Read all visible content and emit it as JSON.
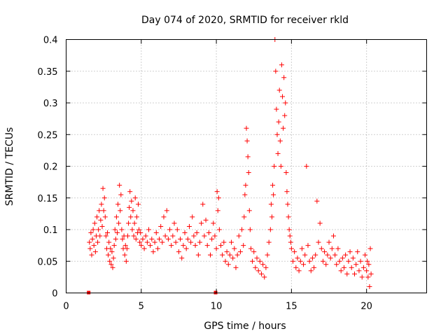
{
  "chart_data": {
    "type": "scatter",
    "title": "Day 074 of 2020, SRMTID for receiver rkld",
    "xlabel": "GPS time / hours",
    "ylabel": "SRMTID / TECUs",
    "xlim": [
      0,
      24
    ],
    "ylim": [
      0,
      0.4
    ],
    "xticks": [
      0,
      5,
      10,
      15,
      20
    ],
    "xtick_labels": [
      "0",
      "5",
      "10",
      "15",
      "20"
    ],
    "yticks": [
      0,
      0.05,
      0.1,
      0.15,
      0.2,
      0.25,
      0.3,
      0.35,
      0.4
    ],
    "ytick_labels": [
      "0",
      "0.05",
      "0.1",
      "0.15",
      "0.2",
      "0.25",
      "0.3",
      "0.35",
      "0.4"
    ],
    "grid": true,
    "marker": "+",
    "marker_color": "#ff0000",
    "zero_markers": [
      {
        "x": 1.5,
        "y": 0
      },
      {
        "x": 9.95,
        "y": 0
      }
    ],
    "series": [
      {
        "name": "SRMTID",
        "points": [
          [
            1.55,
            0.08
          ],
          [
            1.6,
            0.07
          ],
          [
            1.65,
            0.095
          ],
          [
            1.7,
            0.06
          ],
          [
            1.75,
            0.085
          ],
          [
            1.8,
            0.1
          ],
          [
            1.85,
            0.075
          ],
          [
            1.9,
            0.11
          ],
          [
            1.95,
            0.065
          ],
          [
            2.0,
            0.09
          ],
          [
            2.05,
            0.12
          ],
          [
            2.1,
            0.08
          ],
          [
            2.15,
            0.1
          ],
          [
            2.2,
            0.13
          ],
          [
            2.25,
            0.09
          ],
          [
            2.3,
            0.115
          ],
          [
            2.35,
            0.14
          ],
          [
            2.4,
            0.105
          ],
          [
            2.45,
            0.165
          ],
          [
            2.5,
            0.13
          ],
          [
            2.55,
            0.15
          ],
          [
            2.6,
            0.12
          ],
          [
            2.65,
            0.09
          ],
          [
            2.7,
            0.07
          ],
          [
            2.75,
            0.095
          ],
          [
            2.8,
            0.06
          ],
          [
            2.85,
            0.08
          ],
          [
            2.9,
            0.05
          ],
          [
            2.95,
            0.07
          ],
          [
            3.0,
            0.045
          ],
          [
            3.05,
            0.065
          ],
          [
            3.1,
            0.04
          ],
          [
            3.15,
            0.055
          ],
          [
            3.2,
            0.075
          ],
          [
            3.25,
            0.1
          ],
          [
            3.3,
            0.085
          ],
          [
            3.35,
            0.12
          ],
          [
            3.4,
            0.095
          ],
          [
            3.45,
            0.14
          ],
          [
            3.5,
            0.11
          ],
          [
            3.55,
            0.17
          ],
          [
            3.6,
            0.13
          ],
          [
            3.65,
            0.155
          ],
          [
            3.7,
            0.1
          ],
          [
            3.75,
            0.085
          ],
          [
            3.8,
            0.07
          ],
          [
            3.85,
            0.09
          ],
          [
            3.9,
            0.06
          ],
          [
            3.95,
            0.075
          ],
          [
            4.0,
            0.05
          ],
          [
            4.05,
            0.07
          ],
          [
            4.1,
            0.09
          ],
          [
            4.15,
            0.11
          ],
          [
            4.2,
            0.135
          ],
          [
            4.25,
            0.16
          ],
          [
            4.3,
            0.12
          ],
          [
            4.35,
            0.145
          ],
          [
            4.4,
            0.1
          ],
          [
            4.45,
            0.13
          ],
          [
            4.5,
            0.09
          ],
          [
            4.55,
            0.11
          ],
          [
            4.6,
            0.15
          ],
          [
            4.65,
            0.085
          ],
          [
            4.7,
            0.12
          ],
          [
            4.75,
            0.095
          ],
          [
            4.8,
            0.14
          ],
          [
            4.85,
            0.1
          ],
          [
            4.9,
            0.08
          ],
          [
            4.95,
            0.095
          ],
          [
            5.0,
            0.075
          ],
          [
            5.1,
            0.085
          ],
          [
            5.2,
            0.07
          ],
          [
            5.3,
            0.09
          ],
          [
            5.4,
            0.08
          ],
          [
            5.5,
            0.1
          ],
          [
            5.6,
            0.075
          ],
          [
            5.7,
            0.085
          ],
          [
            5.8,
            0.065
          ],
          [
            5.9,
            0.08
          ],
          [
            6.0,
            0.095
          ],
          [
            6.1,
            0.07
          ],
          [
            6.2,
            0.085
          ],
          [
            6.3,
            0.105
          ],
          [
            6.4,
            0.08
          ],
          [
            6.5,
            0.12
          ],
          [
            6.6,
            0.09
          ],
          [
            6.7,
            0.13
          ],
          [
            6.8,
            0.085
          ],
          [
            6.9,
            0.1
          ],
          [
            7.0,
            0.075
          ],
          [
            7.1,
            0.09
          ],
          [
            7.2,
            0.11
          ],
          [
            7.3,
            0.08
          ],
          [
            7.4,
            0.1
          ],
          [
            7.5,
            0.065
          ],
          [
            7.6,
            0.085
          ],
          [
            7.7,
            0.055
          ],
          [
            7.8,
            0.075
          ],
          [
            7.9,
            0.095
          ],
          [
            8.0,
            0.07
          ],
          [
            8.1,
            0.085
          ],
          [
            8.2,
            0.105
          ],
          [
            8.3,
            0.08
          ],
          [
            8.4,
            0.12
          ],
          [
            8.5,
            0.09
          ],
          [
            8.6,
            0.075
          ],
          [
            8.7,
            0.095
          ],
          [
            8.8,
            0.06
          ],
          [
            8.9,
            0.08
          ],
          [
            9.0,
            0.11
          ],
          [
            9.1,
            0.14
          ],
          [
            9.2,
            0.09
          ],
          [
            9.3,
            0.115
          ],
          [
            9.4,
            0.075
          ],
          [
            9.5,
            0.095
          ],
          [
            9.6,
            0.06
          ],
          [
            9.7,
            0.085
          ],
          [
            9.8,
            0.11
          ],
          [
            9.9,
            0.09
          ],
          [
            10.0,
            0.07
          ],
          [
            10.05,
            0.16
          ],
          [
            10.1,
            0.13
          ],
          [
            10.15,
            0.15
          ],
          [
            10.2,
            0.1
          ],
          [
            10.3,
            0.075
          ],
          [
            10.4,
            0.06
          ],
          [
            10.5,
            0.08
          ],
          [
            10.6,
            0.05
          ],
          [
            10.7,
            0.065
          ],
          [
            10.8,
            0.045
          ],
          [
            10.9,
            0.06
          ],
          [
            11.0,
            0.08
          ],
          [
            11.1,
            0.055
          ],
          [
            11.2,
            0.07
          ],
          [
            11.3,
            0.04
          ],
          [
            11.4,
            0.06
          ],
          [
            11.5,
            0.09
          ],
          [
            11.6,
            0.065
          ],
          [
            11.7,
            0.1
          ],
          [
            11.8,
            0.075
          ],
          [
            11.85,
            0.12
          ],
          [
            11.9,
            0.155
          ],
          [
            11.95,
            0.17
          ],
          [
            12.0,
            0.26
          ],
          [
            12.05,
            0.24
          ],
          [
            12.1,
            0.215
          ],
          [
            12.15,
            0.19
          ],
          [
            12.2,
            0.13
          ],
          [
            12.25,
            0.1
          ],
          [
            12.3,
            0.07
          ],
          [
            12.4,
            0.05
          ],
          [
            12.5,
            0.065
          ],
          [
            12.6,
            0.04
          ],
          [
            12.7,
            0.055
          ],
          [
            12.8,
            0.035
          ],
          [
            12.9,
            0.05
          ],
          [
            13.0,
            0.03
          ],
          [
            13.1,
            0.045
          ],
          [
            13.2,
            0.025
          ],
          [
            13.3,
            0.04
          ],
          [
            13.4,
            0.06
          ],
          [
            13.5,
            0.08
          ],
          [
            13.6,
            0.1
          ],
          [
            13.65,
            0.14
          ],
          [
            13.7,
            0.12
          ],
          [
            13.75,
            0.17
          ],
          [
            13.8,
            0.155
          ],
          [
            13.85,
            0.2
          ],
          [
            13.9,
            0.4
          ],
          [
            13.95,
            0.35
          ],
          [
            14.0,
            0.29
          ],
          [
            14.05,
            0.25
          ],
          [
            14.1,
            0.22
          ],
          [
            14.15,
            0.27
          ],
          [
            14.2,
            0.32
          ],
          [
            14.25,
            0.24
          ],
          [
            14.3,
            0.2
          ],
          [
            14.35,
            0.36
          ],
          [
            14.4,
            0.31
          ],
          [
            14.45,
            0.26
          ],
          [
            14.5,
            0.34
          ],
          [
            14.55,
            0.28
          ],
          [
            14.6,
            0.3
          ],
          [
            14.65,
            0.19
          ],
          [
            14.7,
            0.16
          ],
          [
            14.75,
            0.14
          ],
          [
            14.8,
            0.12
          ],
          [
            14.85,
            0.1
          ],
          [
            14.9,
            0.09
          ],
          [
            14.95,
            0.08
          ],
          [
            15.0,
            0.07
          ],
          [
            15.1,
            0.05
          ],
          [
            15.2,
            0.065
          ],
          [
            15.3,
            0.04
          ],
          [
            15.4,
            0.055
          ],
          [
            15.5,
            0.035
          ],
          [
            15.6,
            0.05
          ],
          [
            15.7,
            0.07
          ],
          [
            15.8,
            0.045
          ],
          [
            15.9,
            0.06
          ],
          [
            16.0,
            0.2
          ],
          [
            16.1,
            0.075
          ],
          [
            16.2,
            0.05
          ],
          [
            16.3,
            0.035
          ],
          [
            16.4,
            0.055
          ],
          [
            16.5,
            0.04
          ],
          [
            16.6,
            0.06
          ],
          [
            16.7,
            0.145
          ],
          [
            16.8,
            0.08
          ],
          [
            16.9,
            0.11
          ],
          [
            17.0,
            0.07
          ],
          [
            17.1,
            0.05
          ],
          [
            17.2,
            0.065
          ],
          [
            17.3,
            0.045
          ],
          [
            17.4,
            0.06
          ],
          [
            17.5,
            0.08
          ],
          [
            17.6,
            0.055
          ],
          [
            17.7,
            0.07
          ],
          [
            17.8,
            0.09
          ],
          [
            17.9,
            0.06
          ],
          [
            18.0,
            0.045
          ],
          [
            18.1,
            0.07
          ],
          [
            18.2,
            0.05
          ],
          [
            18.3,
            0.035
          ],
          [
            18.4,
            0.055
          ],
          [
            18.5,
            0.04
          ],
          [
            18.6,
            0.06
          ],
          [
            18.7,
            0.03
          ],
          [
            18.8,
            0.05
          ],
          [
            18.9,
            0.065
          ],
          [
            19.0,
            0.04
          ],
          [
            19.1,
            0.055
          ],
          [
            19.2,
            0.03
          ],
          [
            19.3,
            0.045
          ],
          [
            19.4,
            0.065
          ],
          [
            19.5,
            0.035
          ],
          [
            19.6,
            0.05
          ],
          [
            19.7,
            0.025
          ],
          [
            19.8,
            0.04
          ],
          [
            19.9,
            0.06
          ],
          [
            20.0,
            0.035
          ],
          [
            20.05,
            0.05
          ],
          [
            20.1,
            0.025
          ],
          [
            20.15,
            0.045
          ],
          [
            20.2,
            0.01
          ],
          [
            20.25,
            0.07
          ],
          [
            20.3,
            0.03
          ]
        ]
      }
    ]
  }
}
